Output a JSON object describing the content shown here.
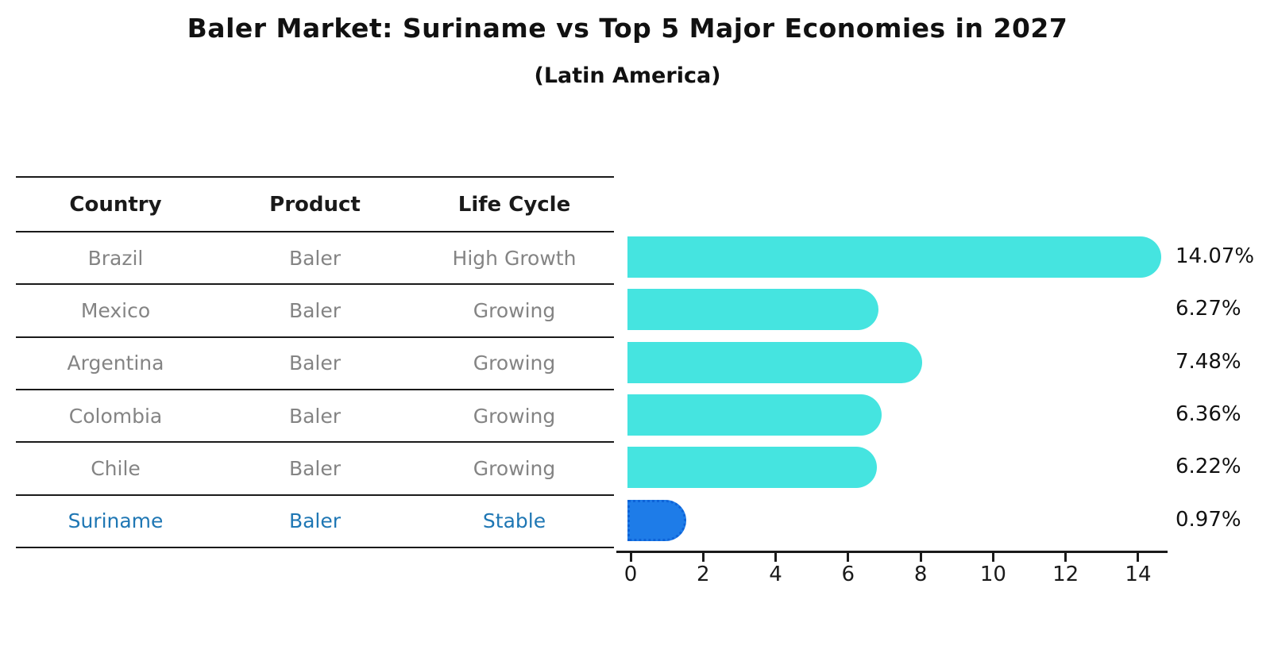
{
  "title": "Baler Market: Suriname vs Top 5 Major Economies in 2027",
  "subtitle": "(Latin America)",
  "table": {
    "headers": [
      "Country",
      "Product",
      "Life Cycle"
    ],
    "rows": [
      {
        "country": "Brazil",
        "product": "Baler",
        "life_cycle": "High Growth",
        "highlight": false
      },
      {
        "country": "Mexico",
        "product": "Baler",
        "life_cycle": "Growing",
        "highlight": false
      },
      {
        "country": "Argentina",
        "product": "Baler",
        "life_cycle": "Growing",
        "highlight": false
      },
      {
        "country": "Colombia",
        "product": "Baler",
        "life_cycle": "Growing",
        "highlight": false
      },
      {
        "country": "Chile",
        "product": "Baler",
        "life_cycle": "Growing",
        "highlight": false
      },
      {
        "country": "Suriname",
        "product": "Baler",
        "life_cycle": "Stable",
        "highlight": true
      }
    ]
  },
  "chart_data": {
    "type": "bar",
    "orientation": "horizontal",
    "categories": [
      "Brazil",
      "Mexico",
      "Argentina",
      "Colombia",
      "Chile",
      "Suriname"
    ],
    "values": [
      14.07,
      6.27,
      7.48,
      6.36,
      6.22,
      0.97
    ],
    "value_labels": [
      "14.07%",
      "6.27%",
      "7.48%",
      "6.36%",
      "6.22%",
      "0.97%"
    ],
    "x_ticks": [
      0,
      2,
      4,
      6,
      8,
      10,
      12,
      14
    ],
    "xlim": [
      0,
      14.8
    ],
    "grid": false,
    "legend": "none",
    "bar_color": "#45E4E0",
    "highlight_index": 5,
    "highlight_color": "#1E7CE8",
    "highlight_border_color": "#0E63D8",
    "value_label_color": "#111111",
    "axis_color": "#1a1a1a",
    "table_text_color": "#848484",
    "highlight_text_color": "#1f77b4"
  }
}
